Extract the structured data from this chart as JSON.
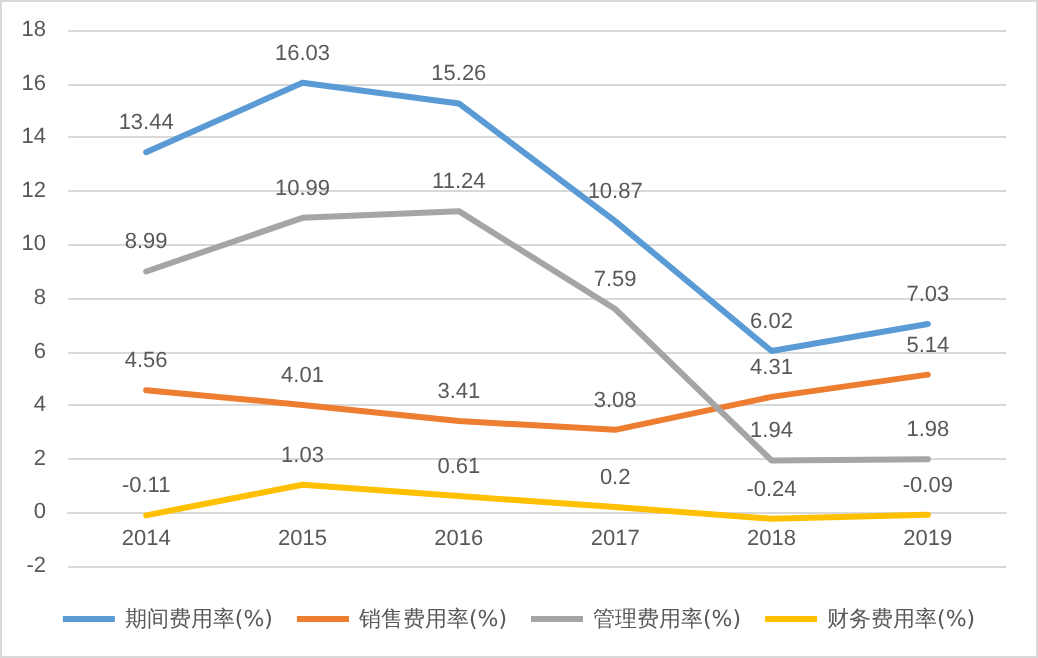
{
  "chart_data": {
    "type": "line",
    "categories": [
      "2014",
      "2015",
      "2016",
      "2017",
      "2018",
      "2019"
    ],
    "series": [
      {
        "name": "期间费用率(%)",
        "color": "#5b9bd5",
        "values": [
          13.44,
          16.03,
          15.26,
          10.87,
          6.02,
          7.03
        ]
      },
      {
        "name": "销售费用率(%)",
        "color": "#ed7d31",
        "values": [
          4.56,
          4.01,
          3.41,
          3.08,
          4.31,
          5.14
        ]
      },
      {
        "name": "管理费用率(%)",
        "color": "#a5a5a5",
        "values": [
          8.99,
          10.99,
          11.24,
          7.59,
          1.94,
          1.98
        ]
      },
      {
        "name": "财务费用率(%)",
        "color": "#ffc000",
        "values": [
          -0.11,
          1.03,
          0.61,
          0.2,
          -0.24,
          -0.09
        ]
      }
    ],
    "ylim": [
      -2,
      18
    ],
    "yticks": [
      -2,
      0,
      2,
      4,
      6,
      8,
      10,
      12,
      14,
      16,
      18
    ],
    "grid": "y",
    "legend": "bottom",
    "marker": "none",
    "line_style": "solid",
    "data_labels": true
  }
}
